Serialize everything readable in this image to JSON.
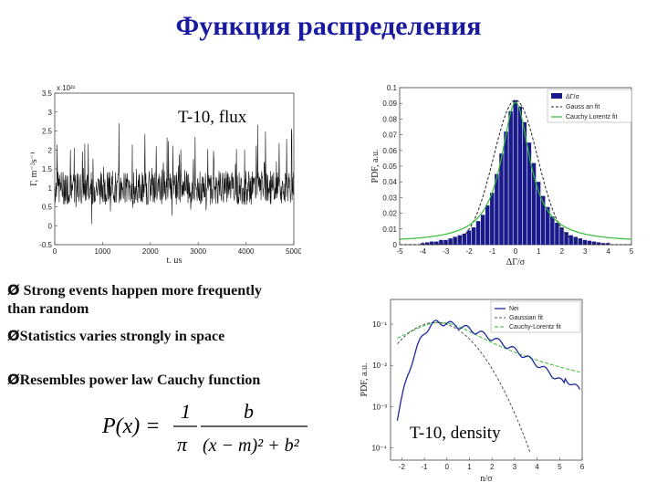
{
  "title": "Функция распределения",
  "labels": {
    "flux": "T-10, flux",
    "density": "T-10, density"
  },
  "bullets": [
    {
      "marker": "Ø",
      "line1": " Strong  events happen more frequently",
      "line2": "than random"
    },
    {
      "marker": "Ø",
      "line1": "Statistics varies strongly in space"
    },
    {
      "marker": "Ø",
      "line1": "Resembles power law Cauchy function"
    }
  ],
  "formula": {
    "lhs": "P(x) =",
    "num1": "1",
    "den1": "π",
    "num2": "b",
    "den2": "(x − m)² + b²"
  },
  "chart_data": [
    {
      "type": "line",
      "name": "flux-time-series",
      "xlabel": "t, μs",
      "ylabel": "Γ, m⁻²s⁻¹",
      "exponent": "x 10²¹",
      "xlim": [
        0,
        5000
      ],
      "ylim": [
        -0.5,
        3.5
      ],
      "xticks": [
        "0",
        "1000",
        "2000",
        "3000",
        "4000",
        "5000"
      ],
      "yticks": [
        "-0.5",
        "0",
        "0.5",
        "1",
        "1.5",
        "2",
        "2.5",
        "3",
        "3.5"
      ],
      "series_color": "#111111"
    },
    {
      "type": "bar",
      "name": "flux-pdf",
      "xlabel": "ΔΓ/σ",
      "ylabel": "PDF, a.u.",
      "xlim": [
        -5,
        5
      ],
      "ylim": [
        0,
        0.1
      ],
      "xticks": [
        "-5",
        "-4",
        "-3",
        "-2",
        "-1",
        "0",
        "1",
        "2",
        "3",
        "4",
        "5"
      ],
      "yticks": [
        "0",
        "0.01",
        "0.02",
        "0.03",
        "0.04",
        "0.05",
        "0.06",
        "0.07",
        "0.08",
        "0.09",
        "0.1"
      ],
      "legend": [
        "ΔΓ/σ",
        "Gauss an fit",
        "Cauchy Lorentz fit"
      ],
      "legend_position": "top-right",
      "colors": {
        "bars": "#1a1a8c",
        "gauss": "#222222",
        "cauchy": "#33bb33"
      },
      "bin_width": 0.2,
      "bins_x": [
        -4.0,
        -3.8,
        -3.6,
        -3.4,
        -3.2,
        -3.0,
        -2.8,
        -2.6,
        -2.4,
        -2.2,
        -2.0,
        -1.8,
        -1.6,
        -1.4,
        -1.2,
        -1.0,
        -0.8,
        -0.6,
        -0.4,
        -0.2,
        0.0,
        0.2,
        0.4,
        0.6,
        0.8,
        1.0,
        1.2,
        1.4,
        1.6,
        1.8,
        2.0,
        2.2,
        2.4,
        2.6,
        2.8,
        3.0,
        3.2,
        3.4,
        3.6,
        3.8,
        4.0
      ],
      "bins_y": [
        0.001,
        0.0015,
        0.002,
        0.002,
        0.003,
        0.003,
        0.004,
        0.005,
        0.006,
        0.007,
        0.009,
        0.011,
        0.015,
        0.019,
        0.025,
        0.033,
        0.045,
        0.058,
        0.072,
        0.085,
        0.092,
        0.088,
        0.078,
        0.065,
        0.052,
        0.04,
        0.031,
        0.024,
        0.018,
        0.014,
        0.011,
        0.008,
        0.006,
        0.005,
        0.004,
        0.003,
        0.0025,
        0.002,
        0.0015,
        0.001,
        0.001
      ]
    },
    {
      "type": "line",
      "name": "density-pdf",
      "xlabel": "n/σ",
      "ylabel": "PDF, a.u.",
      "xlim": [
        -2.5,
        6
      ],
      "yscale": "log",
      "xticks": [
        "-2",
        "-1",
        "0",
        "1",
        "2",
        "3",
        "4",
        "5",
        "6"
      ],
      "yticks": [
        "10⁻¹",
        "10⁻²",
        "10⁻³",
        "10⁻⁴"
      ],
      "legend": [
        "Nei",
        "Gaussian fit",
        "Cauchy-Lorentz fit"
      ],
      "legend_position": "top-right",
      "colors": {
        "data": "#1a2a9c",
        "gauss": "#555555",
        "cauchy": "#33bb33"
      }
    }
  ]
}
